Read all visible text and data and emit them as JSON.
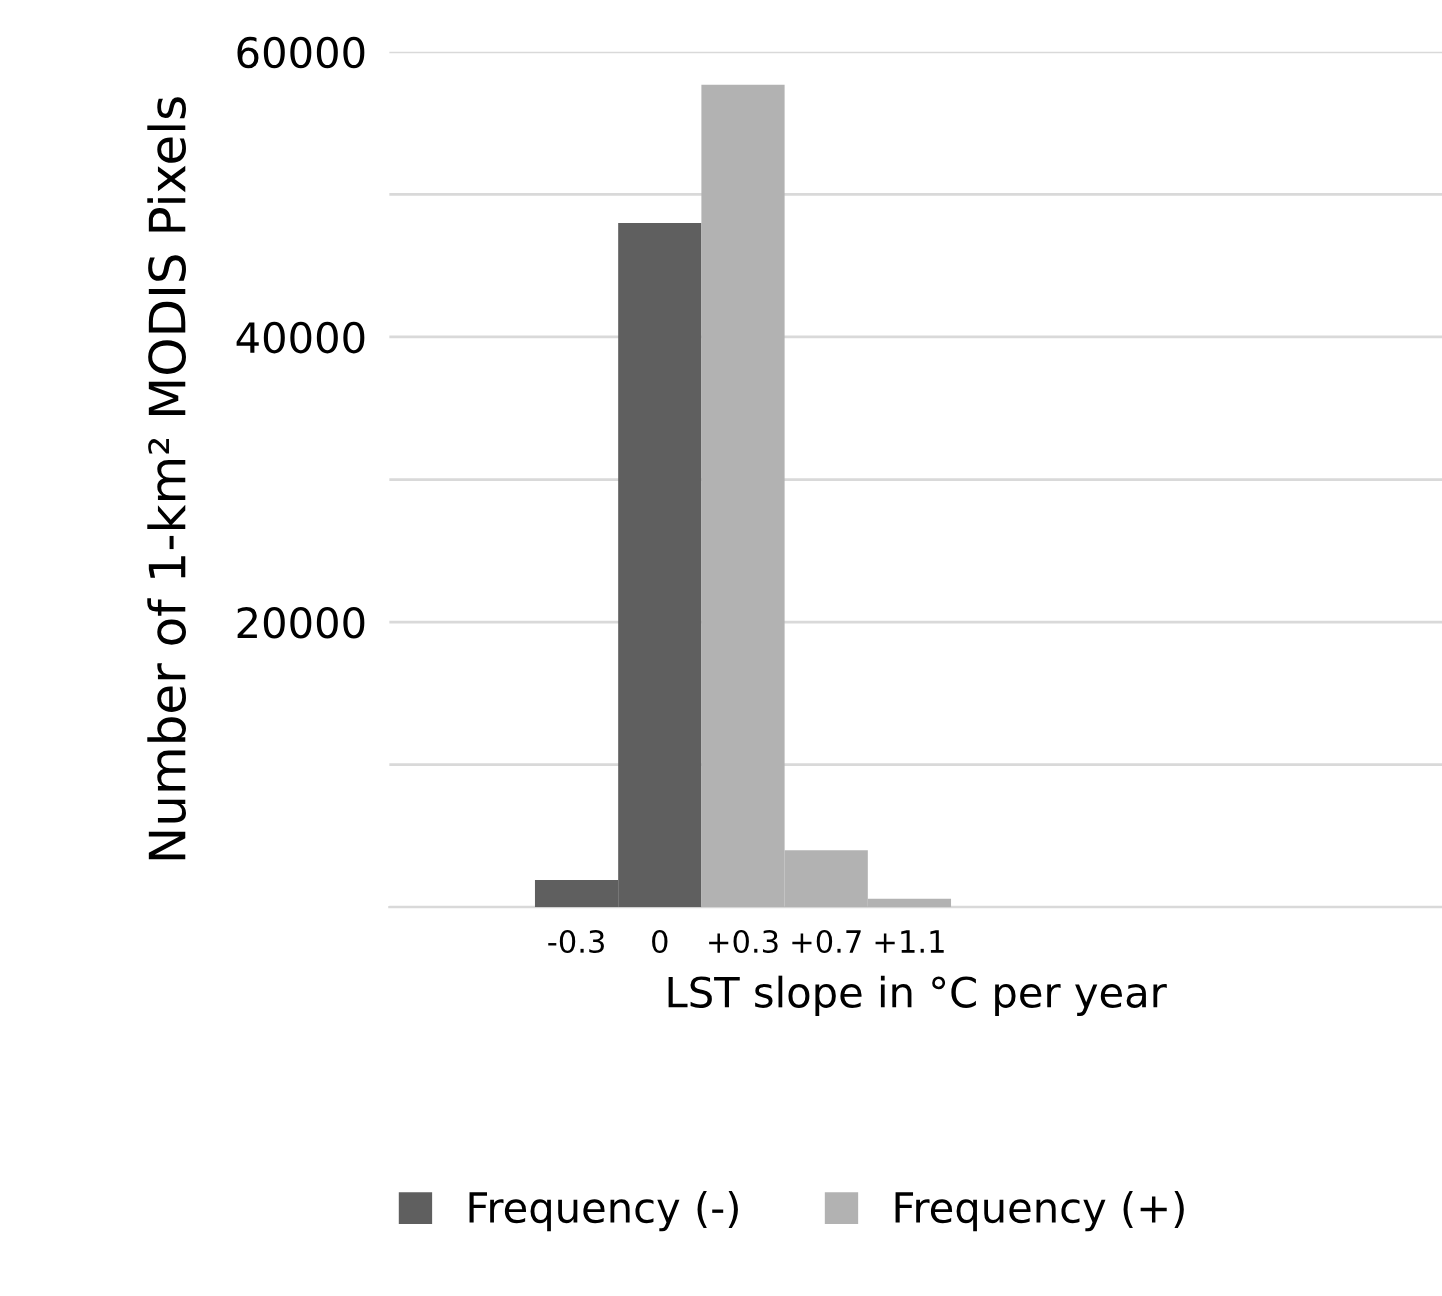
{
  "chart_data": {
    "type": "bar",
    "ylabel": "Number of 1-km² MODIS Pixels",
    "xlabel": "LST slope in °C per year",
    "categories": [
      "-0.3",
      "0",
      "+0.3",
      "+0.7",
      "+1.1"
    ],
    "series": [
      {
        "name": "Frequency (-)",
        "color": "#5f5f5f",
        "values": [
          1900,
          48000,
          null,
          null,
          null
        ]
      },
      {
        "name": "Frequency (+)",
        "color": "#b2b2b2",
        "values": [
          null,
          null,
          57700,
          4000,
          600
        ]
      }
    ],
    "ylim": [
      0,
      60000
    ],
    "yticks": [
      {
        "value": 0,
        "label": null
      },
      {
        "value": 10000,
        "label": null
      },
      20000,
      {
        "value": 30000,
        "label": null
      },
      40000,
      {
        "value": 50000,
        "label": null
      },
      60000
    ],
    "grid": "y",
    "legend": "bottom"
  }
}
